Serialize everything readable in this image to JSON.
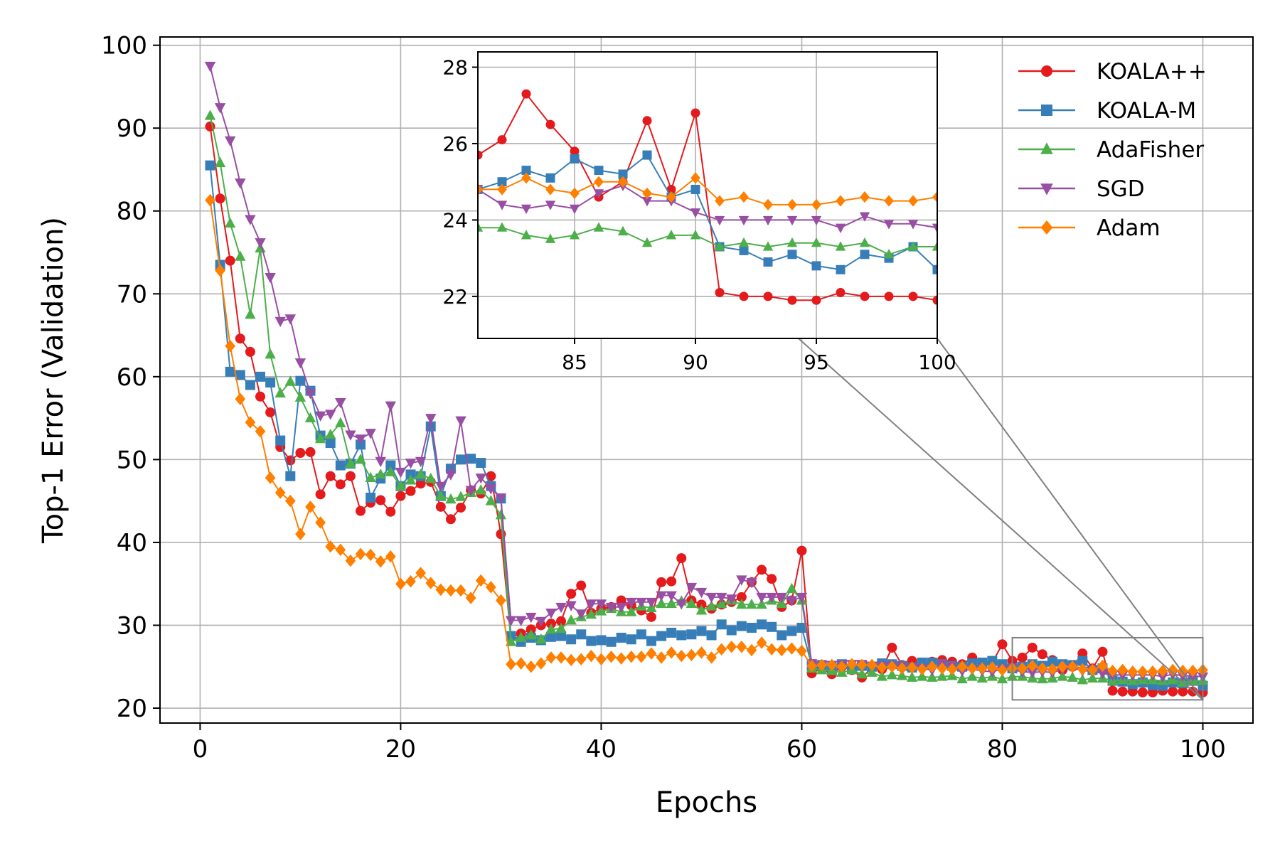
{
  "chart_data": [
    {
      "type": "line",
      "title": "",
      "xlabel": "Epochs",
      "ylabel": "Top-1 Error (Validation)",
      "xlim": [
        -4,
        105
      ],
      "ylim": [
        18.2,
        101
      ],
      "xticks": [
        0,
        20,
        40,
        60,
        80,
        100
      ],
      "yticks": [
        20,
        30,
        40,
        50,
        60,
        70,
        80,
        90,
        100
      ],
      "grid": true,
      "legend_position": "top-right",
      "zoom_box": {
        "x": [
          81,
          100
        ],
        "y": [
          21,
          28.5
        ]
      },
      "series": [
        {
          "name": "KOALA++",
          "color": "#e41a1c",
          "marker": "circle",
          "x": [
            1,
            2,
            3,
            4,
            5,
            6,
            7,
            8,
            9,
            10,
            11,
            12,
            13,
            14,
            15,
            16,
            17,
            18,
            19,
            20,
            21,
            22,
            23,
            24,
            25,
            26,
            27,
            28,
            29,
            30,
            31,
            32,
            33,
            34,
            35,
            36,
            37,
            38,
            39,
            40,
            41,
            42,
            43,
            44,
            45,
            46,
            47,
            48,
            49,
            50,
            51,
            52,
            53,
            54,
            55,
            56,
            57,
            58,
            59,
            60,
            61,
            62,
            63,
            64,
            65,
            66,
            67,
            68,
            69,
            70,
            71,
            72,
            73,
            74,
            75,
            76,
            77,
            78,
            79,
            80,
            81,
            82,
            83,
            84,
            85,
            86,
            87,
            88,
            89,
            90,
            91,
            92,
            93,
            94,
            95,
            96,
            97,
            98,
            99,
            100
          ],
          "values": [
            90.2,
            81.5,
            74,
            64.6,
            63,
            57.6,
            55.7,
            51.5,
            49.9,
            50.8,
            50.9,
            45.8,
            48,
            47,
            48,
            43.8,
            44.8,
            45.1,
            43.7,
            45.6,
            46.2,
            47.1,
            47.3,
            44.3,
            42.8,
            44.2,
            46.3,
            45.9,
            48,
            41,
            28.5,
            29,
            29.5,
            30,
            30.2,
            30.5,
            33.8,
            34.8,
            31.5,
            32,
            32.2,
            33,
            32.4,
            31.8,
            31,
            35.2,
            35.3,
            38.1,
            33,
            32.5,
            32,
            32.5,
            32.8,
            33.4,
            35.2,
            36.7,
            35.6,
            32.2,
            33,
            39,
            24.2,
            24.8,
            24.1,
            25,
            24.6,
            23.7,
            24.9,
            24.7,
            27.3,
            25.2,
            25.7,
            25.2,
            25.6,
            25.8,
            25.6,
            25.3,
            26.1,
            25.4,
            25.5,
            27.7,
            25.7,
            26.1,
            27.3,
            26.5,
            25.8,
            24.6,
            25,
            26.6,
            24.8,
            26.8,
            22.1,
            22,
            22,
            21.9,
            21.9,
            22.1,
            22,
            22,
            22,
            21.9
          ]
        },
        {
          "name": "KOALA-M",
          "color": "#377eb8",
          "marker": "square",
          "x": [
            1,
            2,
            3,
            4,
            5,
            6,
            7,
            8,
            9,
            10,
            11,
            12,
            13,
            14,
            15,
            16,
            17,
            18,
            19,
            20,
            21,
            22,
            23,
            24,
            25,
            26,
            27,
            28,
            29,
            30,
            31,
            32,
            33,
            34,
            35,
            36,
            37,
            38,
            39,
            40,
            41,
            42,
            43,
            44,
            45,
            46,
            47,
            48,
            49,
            50,
            51,
            52,
            53,
            54,
            55,
            56,
            57,
            58,
            59,
            60,
            61,
            62,
            63,
            64,
            65,
            66,
            67,
            68,
            69,
            70,
            71,
            72,
            73,
            74,
            75,
            76,
            77,
            78,
            79,
            80,
            81,
            82,
            83,
            84,
            85,
            86,
            87,
            88,
            89,
            90,
            91,
            92,
            93,
            94,
            95,
            96,
            97,
            98,
            99,
            100
          ],
          "values": [
            85.5,
            73.5,
            60.6,
            60.2,
            59,
            60,
            59.3,
            52.3,
            48,
            59.5,
            58.3,
            52.9,
            52,
            49.3,
            49.5,
            51.8,
            45.4,
            47.7,
            49.3,
            46.8,
            48.2,
            48,
            54,
            45.6,
            48.9,
            50,
            50.1,
            49.6,
            46.8,
            45.3,
            28.7,
            28,
            28.5,
            28.2,
            28.6,
            28.7,
            28.3,
            28.9,
            28.1,
            28.2,
            28,
            28.5,
            28.3,
            28.9,
            28.1,
            28.7,
            29.1,
            28.8,
            28.9,
            29.3,
            28.8,
            30.1,
            29.4,
            29.9,
            29.7,
            30.1,
            29.8,
            28.8,
            29.3,
            29.7,
            25.1,
            25.2,
            24.8,
            25.3,
            24.7,
            25.1,
            25,
            25.4,
            25.3,
            25.1,
            24.9,
            25.5,
            25.5,
            25.3,
            25.1,
            25,
            25.4,
            25.5,
            25.7,
            25.3,
            24.8,
            25,
            25.3,
            25.1,
            25.6,
            25.3,
            25.2,
            25.7,
            24.6,
            24.8,
            23.3,
            23.2,
            22.9,
            23.1,
            22.8,
            22.7,
            23.1,
            23,
            23.3,
            22.7
          ]
        },
        {
          "name": "AdaFisher",
          "color": "#4daf4a",
          "marker": "triangle-up",
          "x": [
            1,
            2,
            3,
            4,
            5,
            6,
            7,
            8,
            9,
            10,
            11,
            12,
            13,
            14,
            15,
            16,
            17,
            18,
            19,
            20,
            21,
            22,
            23,
            24,
            25,
            26,
            27,
            28,
            29,
            30,
            31,
            32,
            33,
            34,
            35,
            36,
            37,
            38,
            39,
            40,
            41,
            42,
            43,
            44,
            45,
            46,
            47,
            48,
            49,
            50,
            51,
            52,
            53,
            54,
            55,
            56,
            57,
            58,
            59,
            60,
            61,
            62,
            63,
            64,
            65,
            66,
            67,
            68,
            69,
            70,
            71,
            72,
            73,
            74,
            75,
            76,
            77,
            78,
            79,
            80,
            81,
            82,
            83,
            84,
            85,
            86,
            87,
            88,
            89,
            90,
            91,
            92,
            93,
            94,
            95,
            96,
            97,
            98,
            99,
            100
          ],
          "values": [
            91.5,
            85.8,
            78.5,
            74.5,
            67.5,
            75.5,
            62.7,
            58,
            59.4,
            57.5,
            55,
            52.5,
            53,
            54.4,
            49.5,
            50,
            47.8,
            48.2,
            48.5,
            46.8,
            47.5,
            48.2,
            47.7,
            45.6,
            45.2,
            45.5,
            46,
            46.3,
            45,
            43.3,
            28,
            28.5,
            28.8,
            28.3,
            29.5,
            29.6,
            30.6,
            31,
            31.3,
            31.7,
            32,
            31.6,
            31.6,
            32.3,
            32.1,
            32.6,
            32.6,
            32.9,
            32.6,
            31.8,
            32.3,
            32.6,
            33,
            32.5,
            32.5,
            32.5,
            33,
            32.6,
            34.4,
            33,
            24.8,
            24.6,
            24.5,
            24.3,
            24.6,
            24.1,
            24.3,
            23.8,
            24,
            23.9,
            23.7,
            23.8,
            23.7,
            23.8,
            23.9,
            23.5,
            23.8,
            23.6,
            23.8,
            23.5,
            23.8,
            23.8,
            23.6,
            23.5,
            23.6,
            23.8,
            23.7,
            23.4,
            23.6,
            23.6,
            23.3,
            23.4,
            23.3,
            23.4,
            23.4,
            23.3,
            23.4,
            23.1,
            23.3,
            23.3
          ]
        },
        {
          "name": "SGD",
          "color": "#984ea3",
          "marker": "triangle-down",
          "x": [
            1,
            2,
            3,
            4,
            5,
            6,
            7,
            8,
            9,
            10,
            11,
            12,
            13,
            14,
            15,
            16,
            17,
            18,
            19,
            20,
            21,
            22,
            23,
            24,
            25,
            26,
            27,
            28,
            29,
            30,
            31,
            32,
            33,
            34,
            35,
            36,
            37,
            38,
            39,
            40,
            41,
            42,
            43,
            44,
            45,
            46,
            47,
            48,
            49,
            50,
            51,
            52,
            53,
            54,
            55,
            56,
            57,
            58,
            59,
            60,
            61,
            62,
            63,
            64,
            65,
            66,
            67,
            68,
            69,
            70,
            71,
            72,
            73,
            74,
            75,
            76,
            77,
            78,
            79,
            80,
            81,
            82,
            83,
            84,
            85,
            86,
            87,
            88,
            89,
            90,
            91,
            92,
            93,
            94,
            95,
            96,
            97,
            98,
            99,
            100
          ],
          "values": [
            97.5,
            92.5,
            88.5,
            83.4,
            79,
            76.2,
            72,
            66.7,
            67,
            61.7,
            58,
            55.3,
            55.5,
            56.9,
            53,
            52.5,
            53.2,
            49.8,
            56.5,
            48.5,
            49.6,
            49.8,
            55,
            46.8,
            48.2,
            54.7,
            46.3,
            47.8,
            46.5,
            45.4,
            30.6,
            30.6,
            31,
            30.5,
            31.5,
            32.2,
            32.4,
            31.4,
            32.6,
            32.6,
            32.2,
            32.2,
            32.8,
            32.8,
            32.8,
            33.6,
            33.6,
            32.6,
            34.6,
            34,
            33.4,
            33.4,
            33.2,
            35.5,
            35.2,
            33.4,
            33.4,
            33.4,
            33,
            33.4,
            25.4,
            25.2,
            25.2,
            25.2,
            25.3,
            25.3,
            25.1,
            25.1,
            25.1,
            25,
            24.8,
            24.8,
            24.6,
            25.3,
            25.1,
            24.5,
            24.7,
            24.5,
            24.4,
            24.7,
            24.8,
            24.4,
            24.3,
            24.4,
            24.3,
            24.7,
            24.9,
            24.5,
            24.5,
            24.2,
            24,
            24,
            24,
            24,
            24,
            23.8,
            24.1,
            23.9,
            23.9,
            23.8
          ]
        },
        {
          "name": "Adam",
          "color": "#ff7f00",
          "marker": "diamond",
          "x": [
            1,
            2,
            3,
            4,
            5,
            6,
            7,
            8,
            9,
            10,
            11,
            12,
            13,
            14,
            15,
            16,
            17,
            18,
            19,
            20,
            21,
            22,
            23,
            24,
            25,
            26,
            27,
            28,
            29,
            30,
            31,
            32,
            33,
            34,
            35,
            36,
            37,
            38,
            39,
            40,
            41,
            42,
            43,
            44,
            45,
            46,
            47,
            48,
            49,
            50,
            51,
            52,
            53,
            54,
            55,
            56,
            57,
            58,
            59,
            60,
            61,
            62,
            63,
            64,
            65,
            66,
            67,
            68,
            69,
            70,
            71,
            72,
            73,
            74,
            75,
            76,
            77,
            78,
            79,
            80,
            81,
            82,
            83,
            84,
            85,
            86,
            87,
            88,
            89,
            90,
            91,
            92,
            93,
            94,
            95,
            96,
            97,
            98,
            99,
            100
          ],
          "values": [
            81.3,
            72.8,
            63.7,
            57.3,
            54.5,
            53.4,
            47.8,
            46,
            45,
            41,
            44.3,
            42.4,
            39.5,
            39.1,
            37.8,
            38.6,
            38.5,
            37.7,
            38.3,
            35,
            35.3,
            36.3,
            35.1,
            34.3,
            34.2,
            34.2,
            33.3,
            35.4,
            34.6,
            33,
            25.3,
            25.4,
            25,
            25.4,
            26.1,
            26.1,
            25.8,
            25.9,
            26.3,
            25.9,
            26.2,
            26,
            26.2,
            26.2,
            26.6,
            26.1,
            26.7,
            26.3,
            26.4,
            26.7,
            26.1,
            27.1,
            27.4,
            27.4,
            27,
            27.9,
            27.1,
            27,
            27.2,
            26.9,
            25.1,
            25.2,
            25.2,
            25,
            25.3,
            25.2,
            25.2,
            24.9,
            25,
            24.8,
            24.9,
            24.7,
            25,
            24.8,
            24.7,
            25,
            24.8,
            24.8,
            24.9,
            24.6,
            24.8,
            24.8,
            25.1,
            24.8,
            24.7,
            25,
            25,
            24.7,
            24.6,
            25.1,
            24.5,
            24.6,
            24.4,
            24.4,
            24.4,
            24.5,
            24.6,
            24.5,
            24.5,
            24.6
          ]
        }
      ]
    },
    {
      "type": "line",
      "title": "",
      "xlabel": "",
      "ylabel": "",
      "role": "zoom-inset",
      "xlim": [
        81,
        100
      ],
      "ylim": [
        20.9,
        28.4
      ],
      "xticks": [
        85,
        90,
        95,
        100
      ],
      "yticks": [
        22,
        24,
        26,
        28
      ],
      "grid": true
    }
  ]
}
